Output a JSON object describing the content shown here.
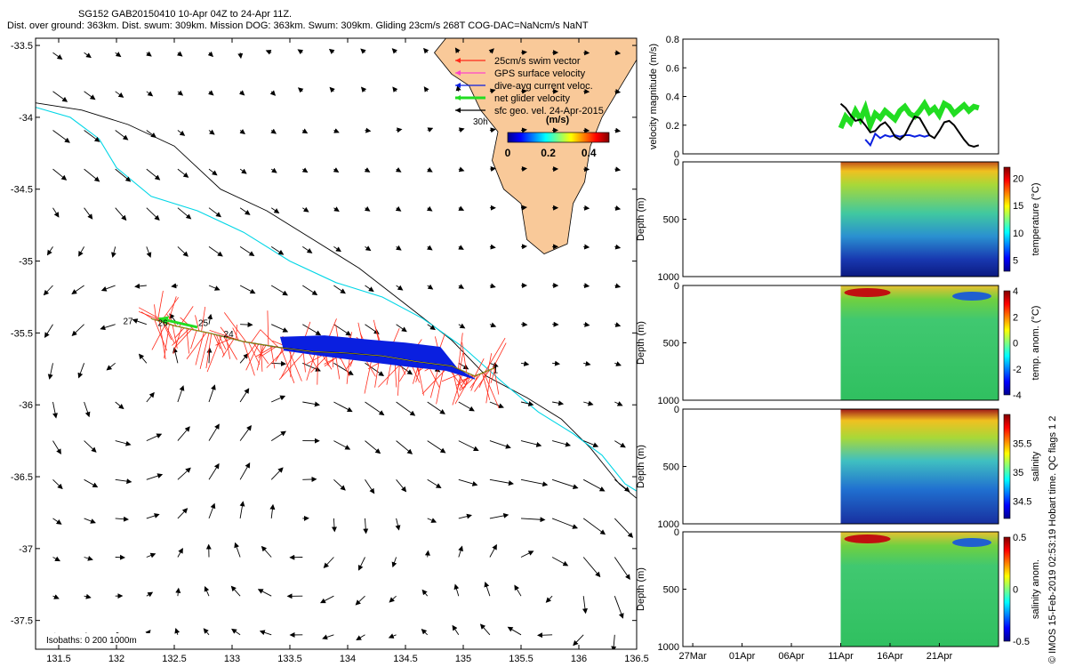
{
  "header": {
    "title": "SG152 GAB20150410 10-Apr 04Z to 24-Apr 11Z.",
    "summary": "Dist. over ground: 363km. Dist. swum: 309km. Mission DOG: 363km. Swum: 309km. Gliding 23cm/s 268T COG-DAC=NaNcm/s NaNT"
  },
  "footer": "© IMOS 15-Feb-2019 02:53:19 Hobart time. QC flags 1  2",
  "colors": {
    "land": "#f9c999",
    "isobath_0": "#000000",
    "isobath_200": "#000000",
    "isobath_1000": "#00d6e6",
    "swim_vector": "#ff2a1a",
    "dive_avg": "#0a1fe0",
    "net_glider": "#22dd22",
    "geo_vel": "#000000",
    "gps": "#ff44cc"
  },
  "chart_data": [
    {
      "type": "map",
      "xlim": [
        131.3,
        136.5
      ],
      "ylim": [
        -37.7,
        -33.45
      ],
      "xticks": [
        131.5,
        132,
        132.5,
        133,
        133.5,
        134,
        134.5,
        135,
        135.5,
        136,
        136.5
      ],
      "xtick_labels": [
        "131.5",
        "132",
        "132.5",
        "133",
        "133.5",
        "134",
        "134.5",
        "135",
        "135.5",
        "136",
        "136.5"
      ],
      "yticks": [
        -33.5,
        -34,
        -34.5,
        -35,
        -35.5,
        -36,
        -36.5,
        -37,
        -37.5
      ],
      "ytick_labels": [
        "-33.5",
        "-34",
        "-34.5",
        "-35",
        "-35.5",
        "-36",
        "-36.5",
        "-37",
        "-37.5"
      ],
      "legend": {
        "entries": [
          "25cm/s swim vector",
          "GPS surface velocity",
          "dive-avg current veloc.",
          "net glider velocity",
          "sfc geo. vel. 24-Apr-2015"
        ],
        "extra_label": "30h",
        "colorbar_title": "(m/s)",
        "colorbar_range": [
          0,
          0.5
        ],
        "colorbar_ticks": [
          0,
          0.2,
          0.4
        ],
        "colorbar_tick_labels": [
          "0",
          "0.2",
          "0.4"
        ]
      },
      "isobath_note": "Isobaths: 0   200  1000m",
      "track_day_labels": [
        {
          "text": "1",
          "lon": 135.28,
          "lat": -35.78
        },
        {
          "text": "24",
          "lon": 132.97,
          "lat": -35.53
        },
        {
          "text": "25",
          "lon": 132.75,
          "lat": -35.45
        },
        {
          "text": "26",
          "lon": 132.4,
          "lat": -35.45
        },
        {
          "text": "27",
          "lon": 132.1,
          "lat": -35.44
        }
      ],
      "glider_track": [
        [
          135.28,
          -35.74
        ],
        [
          135.1,
          -35.8
        ],
        [
          134.9,
          -35.73
        ],
        [
          134.6,
          -35.7
        ],
        [
          134.3,
          -35.66
        ],
        [
          134.0,
          -35.64
        ],
        [
          133.7,
          -35.63
        ],
        [
          133.4,
          -35.6
        ],
        [
          133.1,
          -35.56
        ],
        [
          132.8,
          -35.5
        ],
        [
          132.5,
          -35.45
        ],
        [
          132.3,
          -35.4
        ]
      ],
      "dive_avg_band": [
        [
          133.42,
          -35.53
        ],
        [
          133.8,
          -35.52
        ],
        [
          134.2,
          -35.55
        ],
        [
          134.5,
          -35.57
        ],
        [
          134.8,
          -35.6
        ],
        [
          134.95,
          -35.75
        ],
        [
          135.1,
          -35.82
        ],
        [
          134.85,
          -35.76
        ],
        [
          134.5,
          -35.73
        ],
        [
          134.2,
          -35.7
        ],
        [
          133.8,
          -35.66
        ],
        [
          133.45,
          -35.62
        ]
      ],
      "net_velocity_arrow": {
        "from": [
          132.7,
          -35.46
        ],
        "to": [
          132.37,
          -35.4
        ]
      },
      "coast_0m": [
        [
          134.85,
          -33.45
        ],
        [
          134.75,
          -33.55
        ],
        [
          134.9,
          -33.7
        ],
        [
          135.05,
          -33.78
        ],
        [
          135.15,
          -33.95
        ],
        [
          135.3,
          -34.1
        ],
        [
          135.25,
          -34.3
        ],
        [
          135.35,
          -34.5
        ],
        [
          135.5,
          -34.6
        ],
        [
          135.55,
          -34.85
        ],
        [
          135.7,
          -34.95
        ],
        [
          135.9,
          -34.88
        ],
        [
          135.95,
          -34.6
        ],
        [
          136.05,
          -34.45
        ],
        [
          136.1,
          -34.2
        ],
        [
          136.2,
          -34.0
        ],
        [
          136.35,
          -33.8
        ],
        [
          136.5,
          -33.6
        ]
      ],
      "isobath_200m": [
        [
          131.3,
          -33.9
        ],
        [
          131.7,
          -33.95
        ],
        [
          132.1,
          -34.05
        ],
        [
          132.5,
          -34.2
        ],
        [
          132.9,
          -34.5
        ],
        [
          133.3,
          -34.65
        ],
        [
          133.7,
          -34.85
        ],
        [
          134.1,
          -35.05
        ],
        [
          134.5,
          -35.3
        ],
        [
          134.9,
          -35.55
        ],
        [
          135.2,
          -35.8
        ],
        [
          135.55,
          -35.95
        ],
        [
          135.85,
          -36.1
        ],
        [
          136.1,
          -36.3
        ],
        [
          136.35,
          -36.55
        ],
        [
          136.5,
          -36.65
        ]
      ],
      "isobath_1000m": [
        [
          131.3,
          -33.93
        ],
        [
          131.6,
          -34.0
        ],
        [
          131.85,
          -34.15
        ],
        [
          132.0,
          -34.35
        ],
        [
          132.3,
          -34.55
        ],
        [
          132.7,
          -34.65
        ],
        [
          133.1,
          -34.8
        ],
        [
          133.5,
          -35.0
        ],
        [
          133.9,
          -35.15
        ],
        [
          134.3,
          -35.25
        ],
        [
          134.65,
          -35.4
        ],
        [
          135.0,
          -35.6
        ],
        [
          135.35,
          -35.85
        ],
        [
          135.65,
          -36.05
        ],
        [
          135.95,
          -36.2
        ],
        [
          136.2,
          -36.35
        ],
        [
          136.4,
          -36.55
        ],
        [
          136.5,
          -36.6
        ]
      ]
    },
    {
      "type": "line",
      "ylabel": "velocity magnitude (m/s)",
      "ylim": [
        0,
        0.8
      ],
      "yticks": [
        0,
        0.2,
        0.4,
        0.6,
        0.8
      ],
      "ytick_labels": [
        "0",
        "0.2",
        "0.4",
        "0.6",
        "0.8"
      ],
      "xlim_days": [
        -16,
        16
      ],
      "series": [
        {
          "color": "#22dd22",
          "x": [
            0,
            0.5,
            1,
            1.5,
            2,
            2.5,
            3,
            3.5,
            4,
            4.5,
            5,
            5.5,
            6,
            6.5,
            7,
            7.5,
            8,
            8.5,
            9,
            9.5,
            10,
            10.5,
            11,
            11.5,
            12,
            12.5,
            13,
            13.5,
            14
          ],
          "y": [
            0.18,
            0.26,
            0.22,
            0.3,
            0.24,
            0.32,
            0.2,
            0.28,
            0.25,
            0.3,
            0.27,
            0.24,
            0.3,
            0.33,
            0.28,
            0.26,
            0.3,
            0.35,
            0.29,
            0.32,
            0.27,
            0.35,
            0.33,
            0.28,
            0.31,
            0.34,
            0.3,
            0.33,
            0.32
          ]
        },
        {
          "color": "#0a1fe0",
          "x": [
            2.5,
            3,
            3.5,
            4,
            4.5,
            5,
            5.5,
            6,
            6.5,
            7,
            7.5,
            8,
            8.5,
            9
          ],
          "y": [
            0.1,
            0.06,
            0.14,
            0.11,
            0.13,
            0.12,
            0.13,
            0.12,
            0.13,
            0.13,
            0.12,
            0.13,
            0.12,
            0.13
          ]
        },
        {
          "color": "#000000",
          "x": [
            0,
            0.5,
            1,
            1.5,
            2,
            2.5,
            3,
            3.5,
            4,
            4.5,
            5,
            5.5,
            6,
            6.5,
            7,
            7.5,
            8,
            8.5,
            9,
            9.5,
            10,
            10.5,
            11,
            11.5,
            12,
            12.5,
            13,
            13.5,
            14
          ],
          "y": [
            0.35,
            0.32,
            0.27,
            0.23,
            0.24,
            0.2,
            0.15,
            0.16,
            0.2,
            0.22,
            0.18,
            0.12,
            0.1,
            0.13,
            0.2,
            0.26,
            0.25,
            0.19,
            0.13,
            0.11,
            0.16,
            0.22,
            0.23,
            0.2,
            0.15,
            0.1,
            0.06,
            0.05,
            0.06
          ]
        }
      ]
    },
    {
      "type": "heatmap",
      "ylabel": "Depth (m)",
      "ylim": [
        1000,
        0
      ],
      "yticks": [
        0,
        500,
        1000
      ],
      "ytick_labels": [
        "0",
        "500",
        "1000"
      ],
      "colorbar_label": "temperature (°C)",
      "clim": [
        3,
        22
      ],
      "colorbar_ticks": [
        5,
        10,
        15,
        20
      ],
      "colorbar_tick_labels": [
        "5",
        "10",
        "15",
        "20"
      ]
    },
    {
      "type": "heatmap",
      "ylabel": "Depth (m)",
      "ylim": [
        1000,
        0
      ],
      "yticks": [
        0,
        500,
        1000
      ],
      "ytick_labels": [
        "0",
        "500",
        "1000"
      ],
      "colorbar_label": "temp. anom. (°C)",
      "clim": [
        -4,
        4
      ],
      "colorbar_ticks": [
        -4,
        -2,
        0,
        2,
        4
      ],
      "colorbar_tick_labels": [
        "-4",
        "-2",
        "0",
        "2",
        "4"
      ]
    },
    {
      "type": "heatmap",
      "ylabel": "Depth (m)",
      "ylim": [
        1000,
        0
      ],
      "yticks": [
        0,
        500,
        1000
      ],
      "ytick_labels": [
        "0",
        "500",
        "1000"
      ],
      "colorbar_label": "salinity",
      "clim": [
        34.2,
        36
      ],
      "colorbar_ticks": [
        34.5,
        35,
        35.5
      ],
      "colorbar_tick_labels": [
        "34.5",
        "35",
        "35.5"
      ]
    },
    {
      "type": "heatmap",
      "ylabel": "Depth (m)",
      "ylim": [
        1000,
        0
      ],
      "yticks": [
        0,
        500,
        1000
      ],
      "ytick_labels": [
        "0",
        "500",
        "1000"
      ],
      "colorbar_label": "salinity anom.",
      "clim": [
        -0.5,
        0.5
      ],
      "colorbar_ticks": [
        -0.5,
        0,
        0.5
      ],
      "colorbar_tick_labels": [
        "-0.5",
        "0",
        "0.5"
      ],
      "xtick_labels": [
        "27Mar",
        "01Apr",
        "06Apr",
        "11Apr",
        "16Apr",
        "21Apr"
      ]
    }
  ]
}
